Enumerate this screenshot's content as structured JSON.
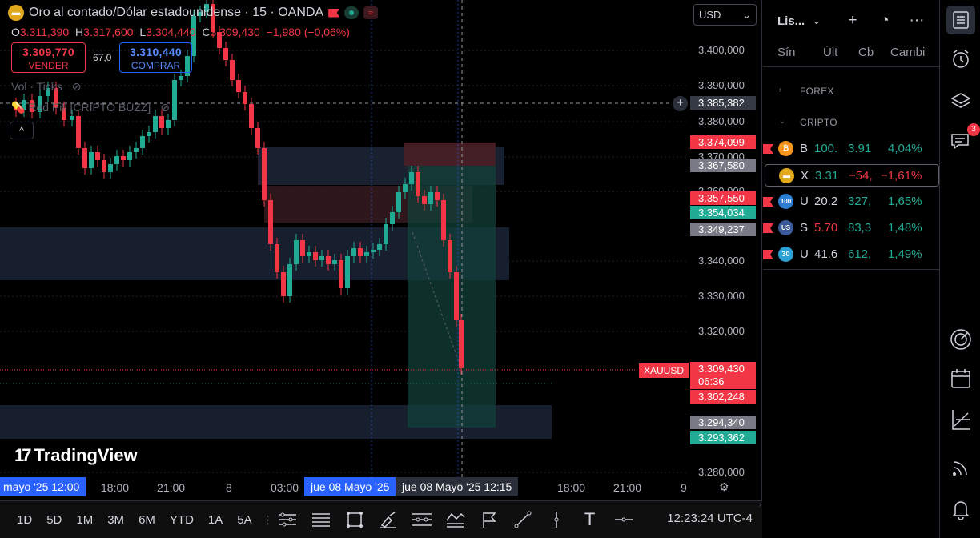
{
  "symbol": {
    "title": "Oro al contado/Dólar estadounidense · 15 · OANDA",
    "icon": "gold-bars-icon",
    "ohlc": {
      "o": "3.311,390",
      "h": "3.317,600",
      "l": "3.304,440",
      "c": "3.309,430",
      "chg": "−1,980 (−0,06%)"
    }
  },
  "trade": {
    "sell_price": "3.309,770",
    "sell_label": "VENDER",
    "spread": "67,0",
    "buy_price": "3.310,440",
    "buy_label": "COMPRAR"
  },
  "indicators": {
    "vol": "Vol · Ticks",
    "custom": "Red Pill [CRIPTO BUZZ]"
  },
  "collapse": "^",
  "currency": {
    "value": "USD"
  },
  "price_axis": {
    "ticks": [
      "3.400,000",
      "3.390,000",
      "3.380,000",
      "3.370,000",
      "3.360,000",
      "3.340,000",
      "3.330,000",
      "3.320,000",
      "3.280,000"
    ],
    "crosshair": "3.385,382",
    "labels": [
      {
        "value": "3.374,099",
        "color": "#f23645"
      },
      {
        "value": "3.367,580",
        "color": "#787b86"
      },
      {
        "value": "3.357,550",
        "color": "#f23645"
      },
      {
        "value": "3.354,034",
        "color": "#22ab94"
      },
      {
        "value": "3.349,237",
        "color": "#787b86"
      },
      {
        "value": "3.302,248",
        "color": "#f23645"
      },
      {
        "value": "3.294,340",
        "color": "#787b86"
      },
      {
        "value": "3.293,362",
        "color": "#22ab94"
      }
    ],
    "last_symbol": "XAUUSD",
    "last_price": "3.309,430",
    "countdown": "06:36"
  },
  "time_axis": {
    "left_hl": "mayo '25   12:00",
    "ticks": [
      "18:00",
      "21:00",
      "8",
      "03:00",
      "18:00",
      "21:00",
      "9"
    ],
    "hl1": "jue 08 Mayo '25",
    "hl2": "jue 08 Mayo '25   12:15"
  },
  "brand": "TradingView",
  "ranges": [
    "1D",
    "5D",
    "1M",
    "3M",
    "6M",
    "YTD",
    "1A",
    "5A"
  ],
  "clock": "12:23:24 UTC-4",
  "watchlist": {
    "title": "Lis...",
    "cols": {
      "sym": "Sín",
      "last": "Últ",
      "chg": "Cb",
      "chgp": "Cambi"
    },
    "groups": [
      "FOREX",
      "CRIPTO"
    ],
    "rows": [
      {
        "sym": "B",
        "last": "100.",
        "chg": "3.91",
        "chgp": "4,04%",
        "icon": "bitcoin-icon",
        "color": "#f7931a",
        "glyph": "₿",
        "dir": "up"
      },
      {
        "sym": "X",
        "last": "3.31",
        "chg": "−54,",
        "chgp": "−1,61%",
        "icon": "gold-icon",
        "color": "#e0a81a",
        "glyph": "Au",
        "dir": "dn"
      },
      {
        "sym": "U",
        "last": "20.2",
        "chg": "327,",
        "chgp": "1,65%",
        "icon": "us100-icon",
        "color": "#2a7fd5",
        "glyph": "100",
        "dir": "up"
      },
      {
        "sym": "S",
        "last": "5.70",
        "chg": "83,3",
        "chgp": "1,48%",
        "icon": "us-flag-icon",
        "color": "#3c5a9a",
        "glyph": "US",
        "dir": "up"
      },
      {
        "sym": "U",
        "last": "41.6",
        "chg": "612,",
        "chgp": "1,49%",
        "icon": "us30-icon",
        "color": "#2aa0d5",
        "glyph": "30",
        "dir": "up"
      }
    ]
  },
  "sidebar": {
    "alerts_badge": "3"
  }
}
